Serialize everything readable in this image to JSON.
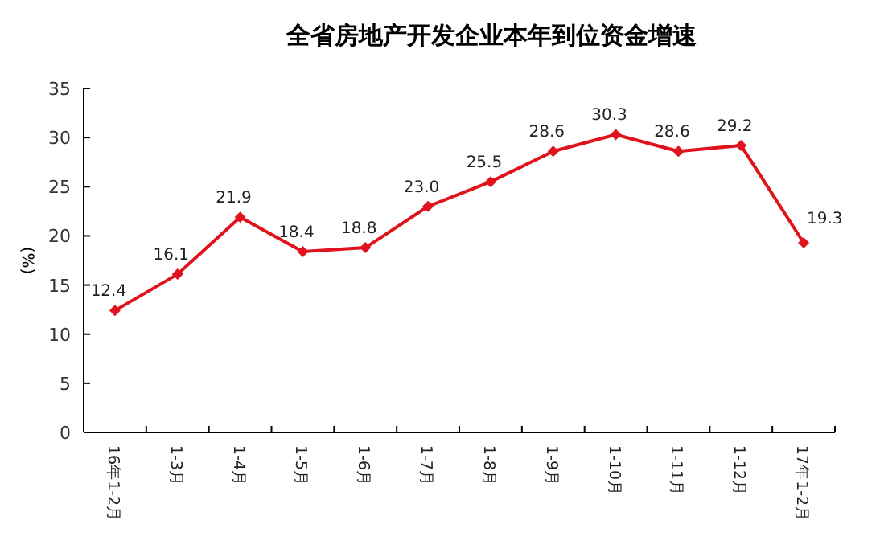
{
  "chart_data": {
    "type": "line",
    "title": "全省房地产开发企业本年到位资金增速",
    "ylabel": "(%)",
    "categories": [
      "16年1-2月",
      "1-3月",
      "1-4月",
      "1-5月",
      "1-6月",
      "1-7月",
      "1-8月",
      "1-9月",
      "1-10月",
      "1-11月",
      "1-12月",
      "17年1-2月"
    ],
    "series": [
      {
        "color": "#e0121b",
        "values": [
          12.4,
          16.1,
          21.9,
          18.4,
          18.8,
          23.0,
          25.5,
          28.6,
          30.3,
          28.6,
          29.2,
          19.3
        ],
        "value_labels": [
          "12.4",
          "16.1",
          "21.9",
          "18.4",
          "18.8",
          "23.0",
          "25.5",
          "28.6",
          "30.3",
          "28.6",
          "29.2",
          "19.3"
        ]
      }
    ],
    "ylim": [
      0,
      35
    ],
    "yticks": [
      0,
      5,
      10,
      15,
      20,
      25,
      30,
      35
    ],
    "marker": "diamond",
    "line_style": "solid"
  }
}
